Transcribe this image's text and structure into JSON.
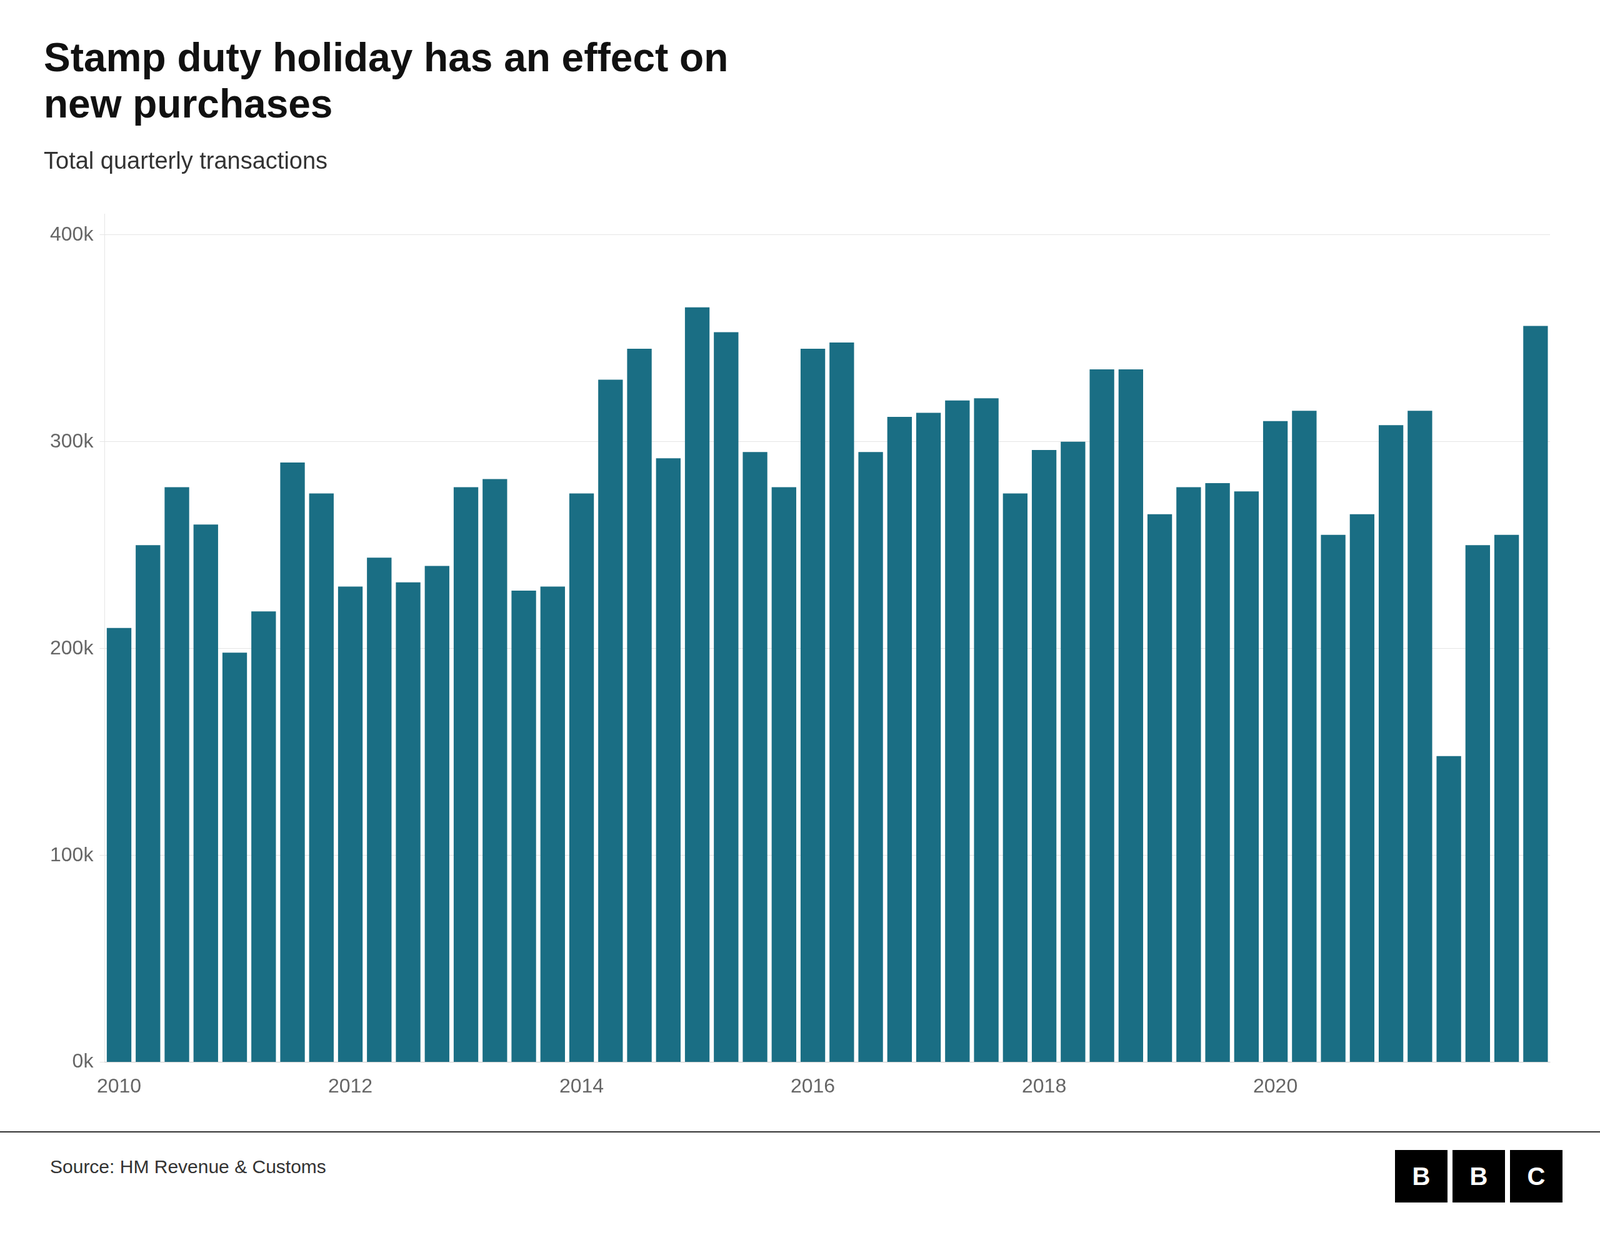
{
  "chart_data": {
    "type": "bar",
    "title": "Stamp duty holiday has an effect on\nnew purchases",
    "subtitle": "Total quarterly transactions",
    "annotations": [
      "Source: HM Revenue & Customs",
      "BBC"
    ],
    "categories": [
      "2010",
      null,
      null,
      null,
      null,
      null,
      null,
      null,
      "2012",
      null,
      null,
      null,
      null,
      null,
      null,
      null,
      "2014",
      null,
      null,
      null,
      null,
      null,
      null,
      null,
      "2016",
      null,
      null,
      null,
      null,
      null,
      null,
      null,
      "2018",
      null,
      null,
      null,
      null,
      null,
      null,
      null,
      "2020",
      null,
      null,
      null,
      null,
      null,
      null,
      null,
      null,
      null
    ],
    "values": [
      210000,
      250000,
      278000,
      260000,
      198000,
      218000,
      290000,
      275000,
      230000,
      244000,
      232000,
      240000,
      278000,
      282000,
      228000,
      230000,
      275000,
      330000,
      345000,
      292000,
      365000,
      353000,
      295000,
      278000,
      345000,
      348000,
      295000,
      312000,
      314000,
      320000,
      321000,
      275000,
      296000,
      300000,
      335000,
      335000,
      265000,
      278000,
      280000,
      276000,
      310000,
      315000,
      255000,
      265000,
      308000,
      315000,
      148000,
      250000,
      255000,
      356000
    ],
    "color": "#1a6e84",
    "ylim": [
      0,
      410000
    ],
    "yticks": [
      {
        "value": 0,
        "label": "0k"
      },
      {
        "value": 100000,
        "label": "100k"
      },
      {
        "value": 200000,
        "label": "200k"
      },
      {
        "value": 300000,
        "label": "300k"
      },
      {
        "value": 400000,
        "label": "400k"
      }
    ],
    "grid": true
  }
}
